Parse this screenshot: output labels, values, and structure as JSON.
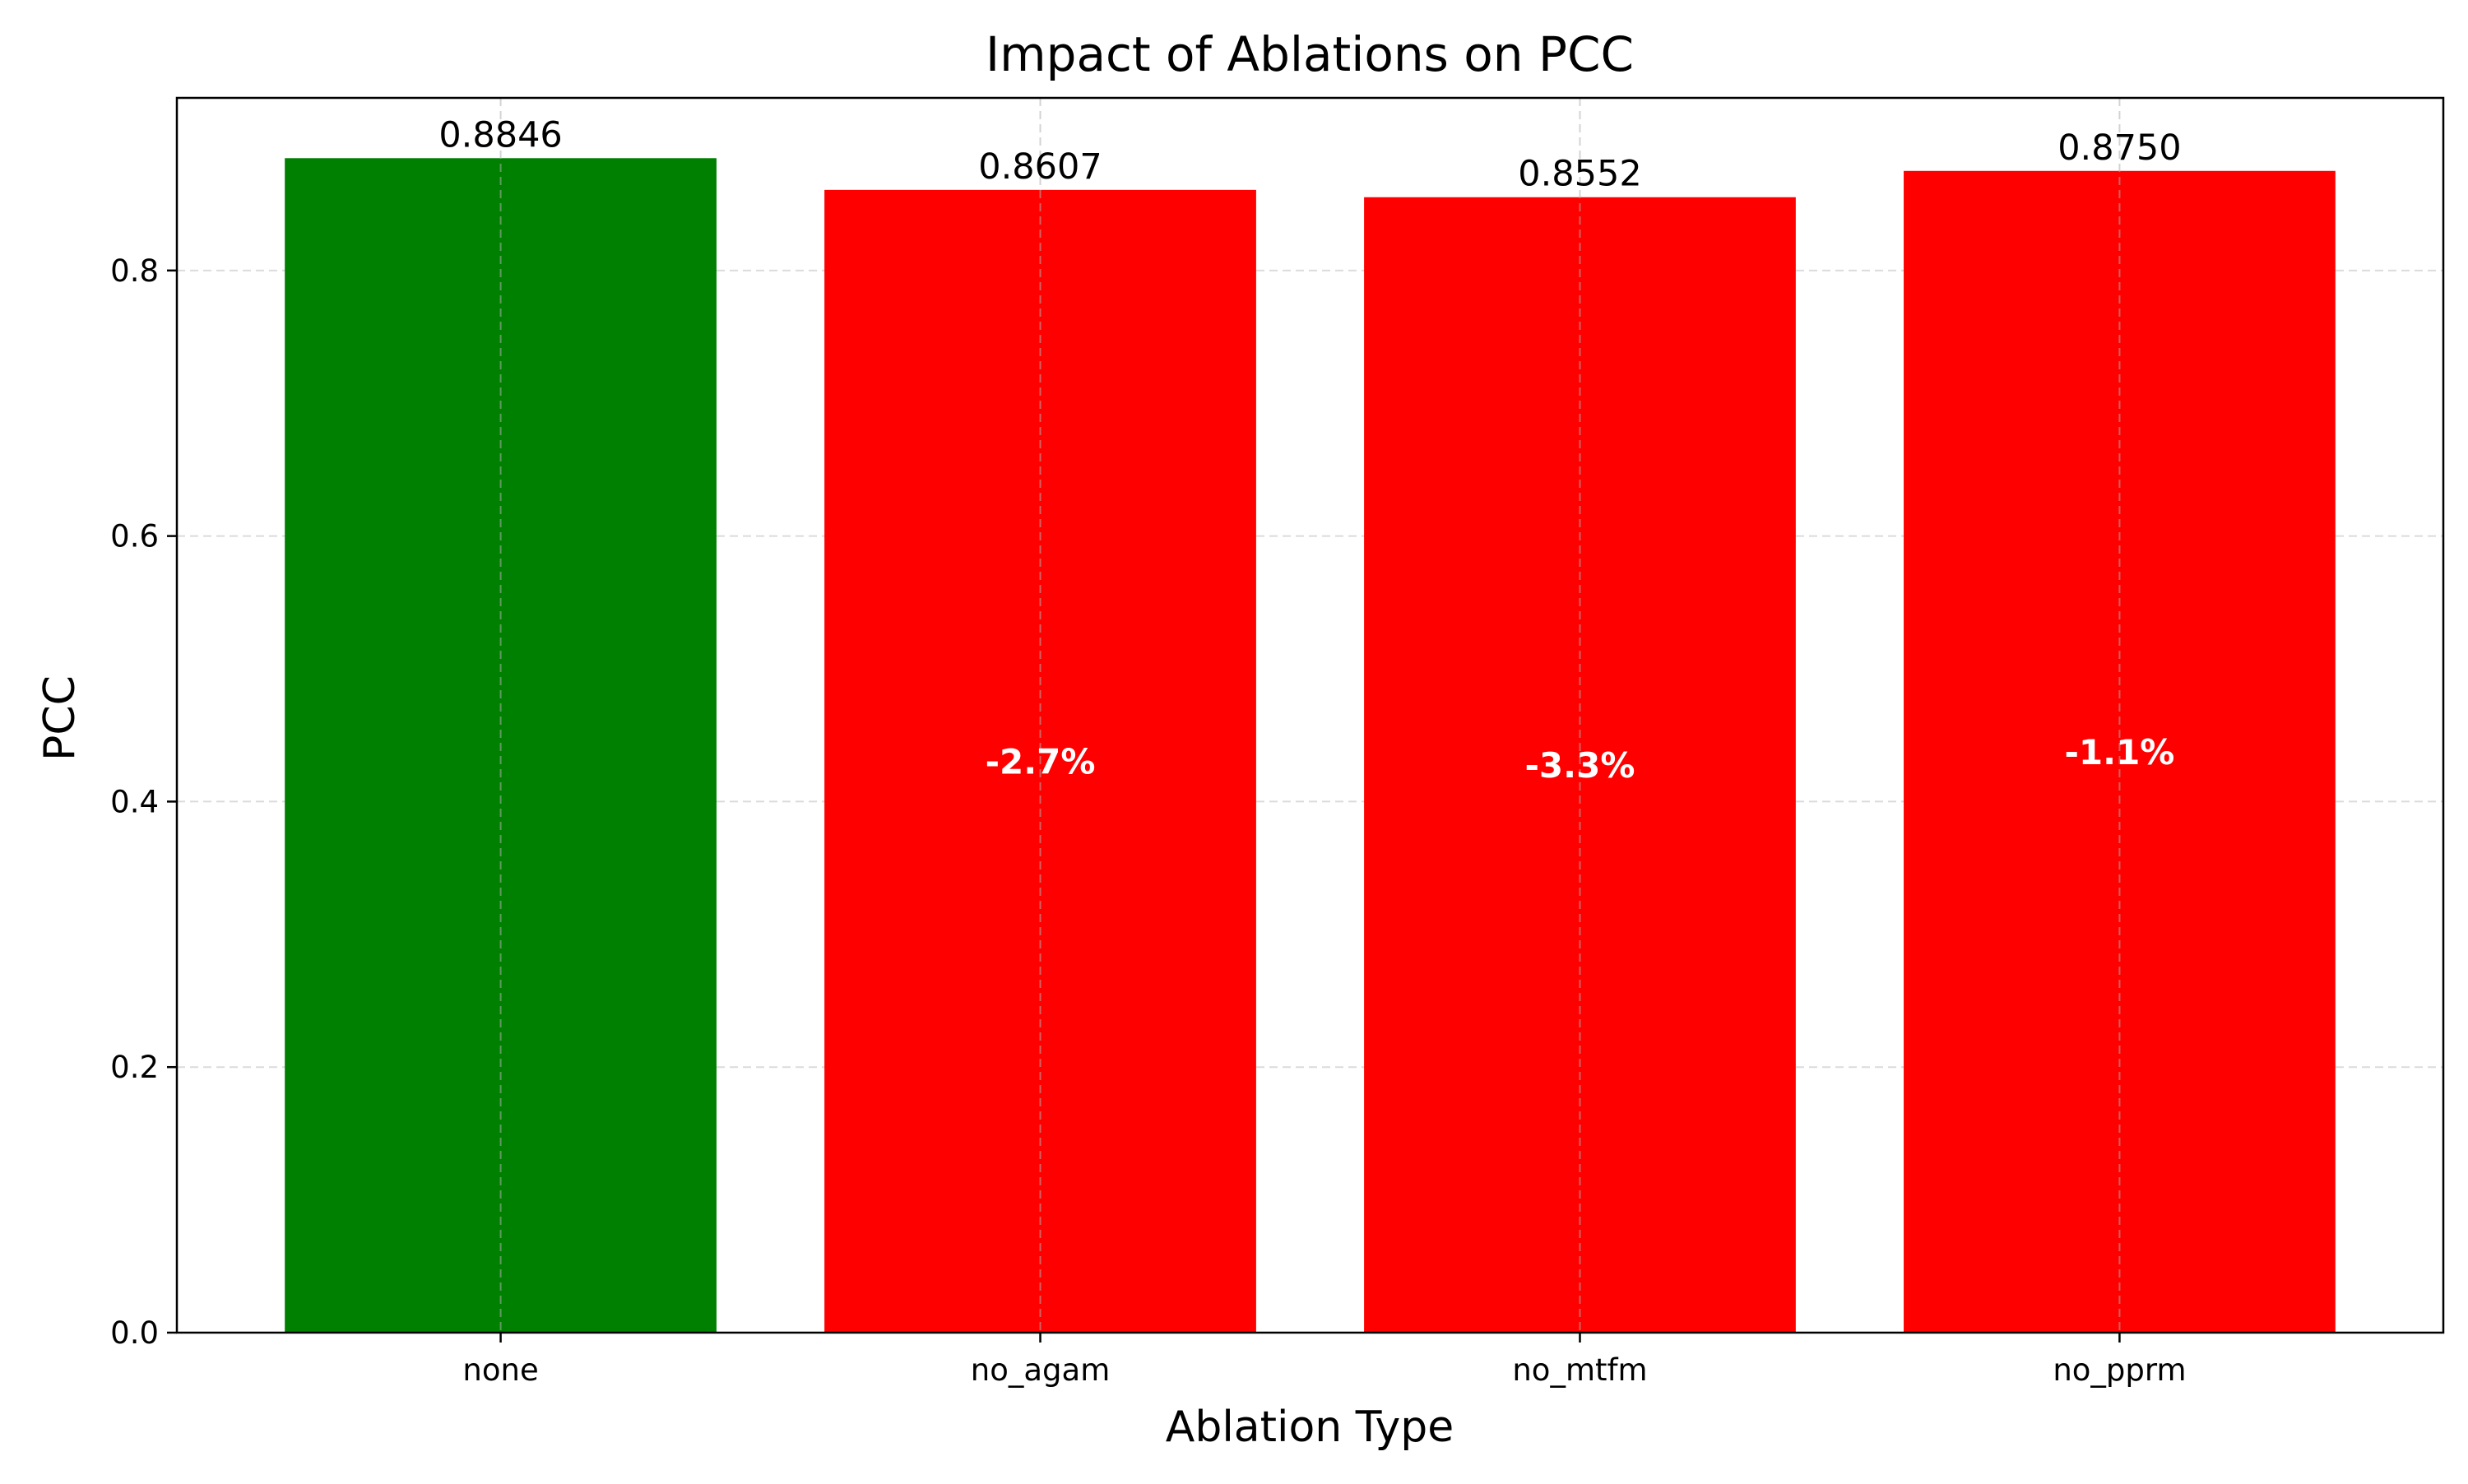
{
  "chart_data": {
    "type": "bar",
    "title": "Impact of Ablations on PCC",
    "xlabel": "Ablation Type",
    "ylabel": "PCC",
    "categories": [
      "none",
      "no_agam",
      "no_mtfm",
      "no_pprm"
    ],
    "values": [
      0.8846,
      0.8607,
      0.8552,
      0.875
    ],
    "value_labels": [
      "0.8846",
      "0.8607",
      "0.8552",
      "0.8750"
    ],
    "change_labels": [
      "",
      "-2.7%",
      "-3.3%",
      "-1.1%"
    ],
    "bar_colors": [
      "#008000",
      "#ff0000",
      "#ff0000",
      "#ff0000"
    ],
    "ylim": [
      0,
      0.93
    ],
    "yticks": [
      0.0,
      0.2,
      0.4,
      0.6,
      0.8
    ],
    "ytick_labels": [
      "0.0",
      "0.2",
      "0.4",
      "0.6",
      "0.8"
    ],
    "grid": true,
    "legend": "none"
  }
}
